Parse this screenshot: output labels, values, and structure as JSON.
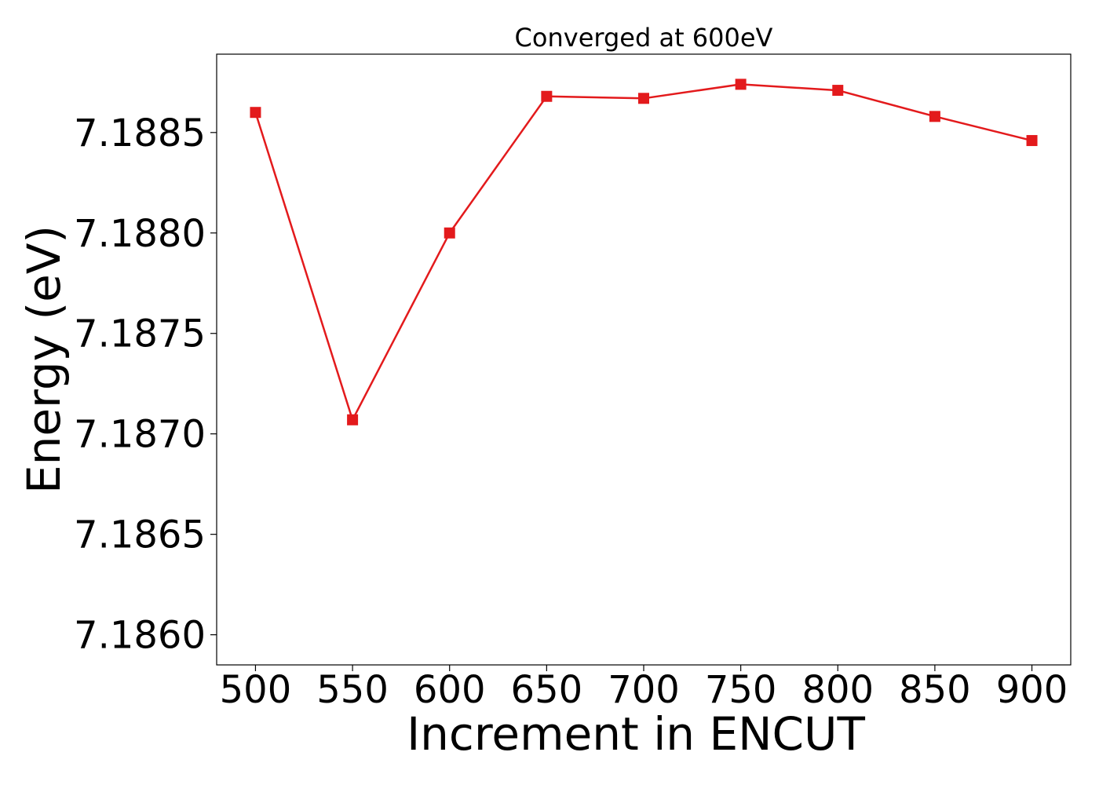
{
  "chart_data": {
    "type": "line",
    "title": "Converged at 600eV",
    "xlabel": "Increment in ENCUT",
    "ylabel": "Energy (eV)",
    "x": [
      500,
      550,
      600,
      650,
      700,
      750,
      800,
      850,
      900
    ],
    "series": [
      {
        "name": "",
        "values": [
          7.1886,
          7.18707,
          7.188,
          7.18868,
          7.18867,
          7.18874,
          7.18871,
          7.18858,
          7.18846
        ],
        "color": "#e31a1c",
        "marker": "square"
      }
    ],
    "xticks": [
      "500",
      "550",
      "600",
      "650",
      "700",
      "750",
      "800",
      "850",
      "900"
    ],
    "yticks": [
      "7.1860",
      "7.1865",
      "7.1870",
      "7.1875",
      "7.1880",
      "7.1885"
    ],
    "xlim": [
      480,
      920
    ],
    "ylim": [
      7.18585,
      7.18889
    ],
    "grid": false,
    "legend": "none"
  }
}
